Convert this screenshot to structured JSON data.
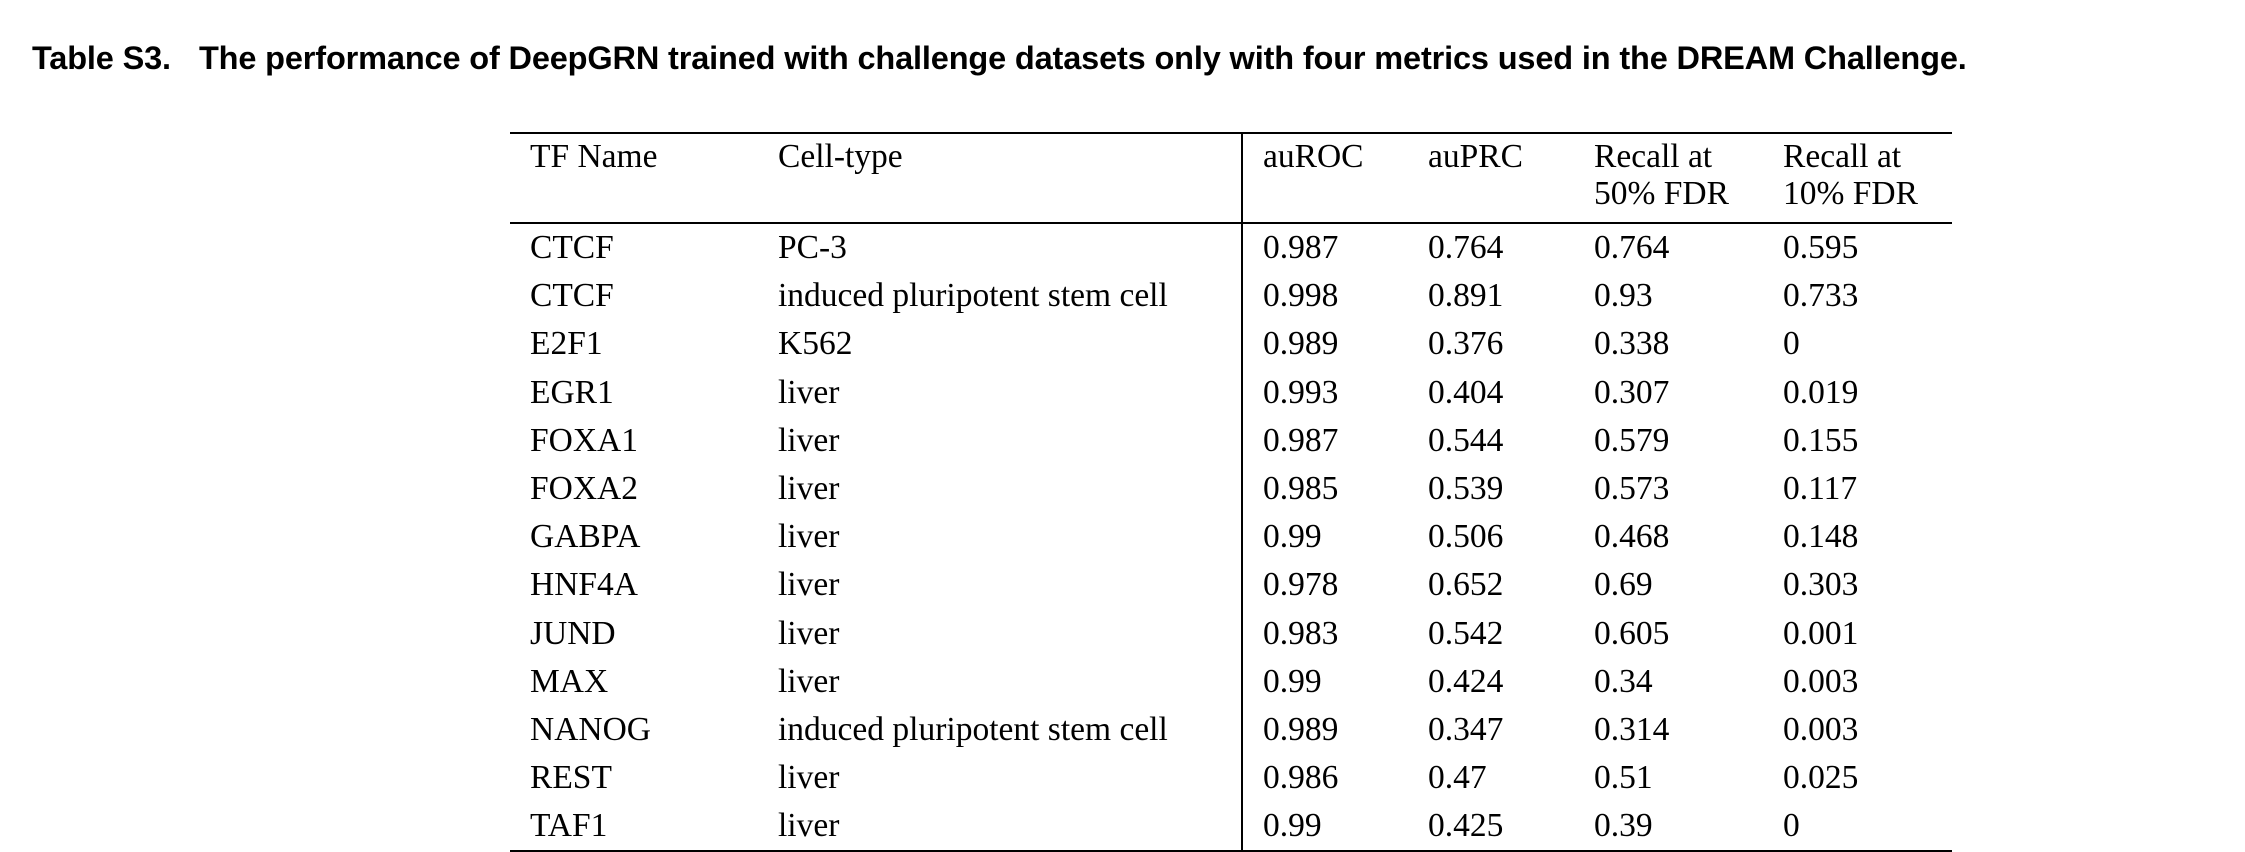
{
  "caption": {
    "label": "Table S3.",
    "text": "The performance of DeepGRN trained with challenge datasets only with four metrics used in the DREAM Challenge."
  },
  "table": {
    "headers": {
      "tf_name": "TF Name",
      "cell_type": "Cell-type",
      "auroc": "auROC",
      "auprc": "auPRC",
      "recall50_line1": "Recall at",
      "recall50_line2": "50% FDR",
      "recall10_line1": "Recall at",
      "recall10_line2": "10% FDR"
    },
    "rows": [
      [
        "CTCF",
        "PC-3",
        "0.987",
        "0.764",
        "0.764",
        "0.595"
      ],
      [
        "CTCF",
        "induced pluripotent stem cell",
        "0.998",
        "0.891",
        "0.93",
        "0.733"
      ],
      [
        "E2F1",
        "K562",
        "0.989",
        "0.376",
        "0.338",
        "0"
      ],
      [
        "EGR1",
        "liver",
        "0.993",
        "0.404",
        "0.307",
        "0.019"
      ],
      [
        "FOXA1",
        "liver",
        "0.987",
        "0.544",
        "0.579",
        "0.155"
      ],
      [
        "FOXA2",
        "liver",
        "0.985",
        "0.539",
        "0.573",
        "0.117"
      ],
      [
        "GABPA",
        "liver",
        "0.99",
        "0.506",
        "0.468",
        "0.148"
      ],
      [
        "HNF4A",
        "liver",
        "0.978",
        "0.652",
        "0.69",
        "0.303"
      ],
      [
        "JUND",
        "liver",
        "0.983",
        "0.542",
        "0.605",
        "0.001"
      ],
      [
        "MAX",
        "liver",
        "0.99",
        "0.424",
        "0.34",
        "0.003"
      ],
      [
        "NANOG",
        "induced pluripotent stem cell",
        "0.989",
        "0.347",
        "0.314",
        "0.003"
      ],
      [
        "REST",
        "liver",
        "0.986",
        "0.47",
        "0.51",
        "0.025"
      ],
      [
        "TAF1",
        "liver",
        "0.99",
        "0.425",
        "0.39",
        "0"
      ]
    ]
  }
}
